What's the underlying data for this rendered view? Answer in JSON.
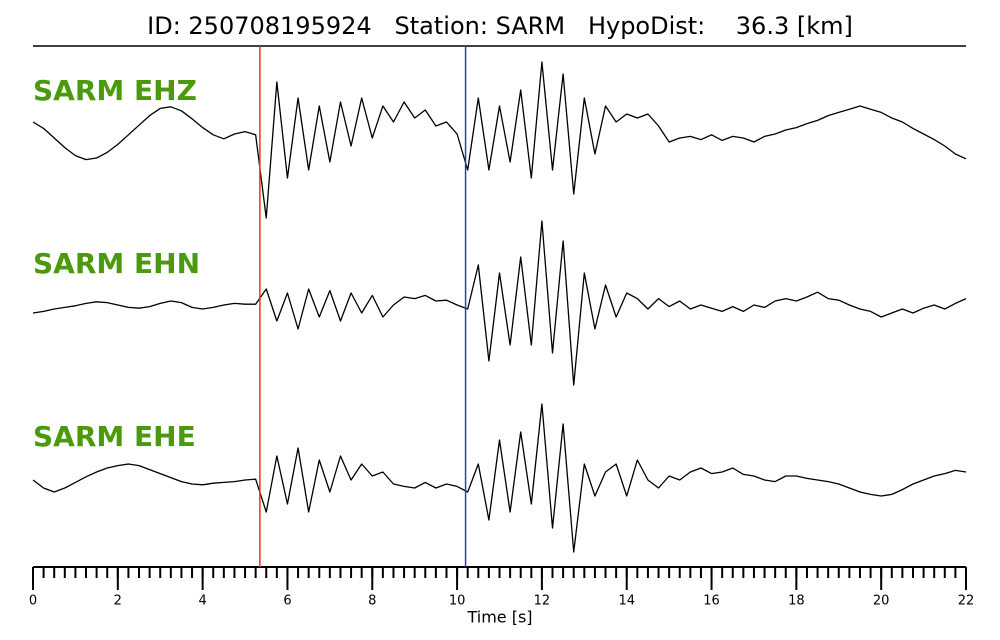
{
  "chart_data": {
    "type": "waveform",
    "title": "ID: 250708195924   Station: SARM   HypoDist:    36.3 [km]",
    "x_label": "Time [s]",
    "xlim": [
      0,
      22
    ],
    "xticks": [
      0,
      2,
      4,
      6,
      8,
      10,
      12,
      14,
      16,
      18,
      20,
      22
    ],
    "xminorticks": [
      0,
      0.25,
      0.5,
      0.75,
      1,
      1.25,
      1.5,
      1.75,
      2,
      2.25,
      2.5,
      2.75,
      3,
      3.25,
      3.5,
      3.75,
      4,
      4.25,
      4.5,
      4.75,
      5,
      5.25,
      5.5,
      5.75,
      6,
      6.25,
      6.5,
      6.75,
      7,
      7.25,
      7.5,
      7.75,
      8,
      8.25,
      8.5,
      8.75,
      9,
      9.25,
      9.5,
      9.75,
      10,
      10.25,
      10.5,
      10.75,
      11,
      11.25,
      11.5,
      11.75,
      12,
      12.25,
      12.5,
      12.75,
      13,
      13.25,
      13.5,
      13.75,
      14,
      14.25,
      14.5,
      14.75,
      15,
      15.25,
      15.5,
      15.75,
      16,
      16.25,
      16.5,
      16.75,
      17,
      17.25,
      17.5,
      17.75,
      18,
      18.25,
      18.5,
      18.75,
      19,
      19.25,
      19.5,
      19.75,
      20,
      20.25,
      20.5,
      20.75,
      21,
      21.25,
      21.5,
      21.75,
      22
    ],
    "ylim": [
      -12,
      12
    ],
    "markers": [
      {
        "x": 5.35,
        "color": "#e8322a"
      },
      {
        "x": 10.2,
        "color": "#3535d5"
      }
    ],
    "x": [
      0,
      0.25,
      0.5,
      0.75,
      1,
      1.25,
      1.5,
      1.75,
      2,
      2.25,
      2.5,
      2.75,
      3,
      3.25,
      3.5,
      3.75,
      4,
      4.25,
      4.5,
      4.75,
      5,
      5.25,
      5.5,
      5.75,
      6,
      6.25,
      6.5,
      6.75,
      7,
      7.25,
      7.5,
      7.75,
      8,
      8.25,
      8.5,
      8.75,
      9,
      9.25,
      9.5,
      9.75,
      10,
      10.25,
      10.5,
      10.75,
      11,
      11.25,
      11.5,
      11.75,
      12,
      12.25,
      12.5,
      12.75,
      13,
      13.25,
      13.5,
      13.75,
      14,
      14.25,
      14.5,
      14.75,
      15,
      15.25,
      15.5,
      15.75,
      16,
      16.25,
      16.5,
      16.75,
      17,
      17.25,
      17.5,
      17.75,
      18,
      18.25,
      18.5,
      18.75,
      19,
      19.25,
      19.5,
      19.75,
      20,
      20.25,
      20.5,
      20.75,
      21,
      21.25,
      21.5,
      21.75,
      22
    ],
    "series": [
      {
        "name": "SARM EHZ",
        "color": "#000000",
        "label_color": "#4a9a0b",
        "values": [
          1,
          0.2,
          -1,
          -2.2,
          -3.2,
          -3.7,
          -3.5,
          -2.8,
          -1.8,
          -0.6,
          0.6,
          1.8,
          2.7,
          2.9,
          2.4,
          1.4,
          0.3,
          -0.6,
          -1.1,
          -0.5,
          -0.2,
          -0.6,
          -11,
          6,
          -6,
          4,
          -5,
          3,
          -4,
          3.5,
          -2,
          4,
          -1,
          3,
          1,
          3.5,
          1.5,
          2.5,
          0.5,
          1,
          -0.5,
          -5,
          4,
          -5,
          3,
          -4,
          5,
          -6,
          8.5,
          -5,
          7,
          -8,
          4,
          -3,
          3,
          1,
          2,
          1.5,
          2,
          0.5,
          -1.5,
          -1,
          -0.8,
          -1.2,
          -0.6,
          -1.3,
          -0.8,
          -1,
          -1.5,
          -0.8,
          -0.5,
          0,
          0.3,
          0.8,
          1.2,
          1.8,
          2.2,
          2.6,
          3,
          2.6,
          2.2,
          1.5,
          1,
          0.2,
          -0.5,
          -1.2,
          -2,
          -3,
          -3.6
        ]
      },
      {
        "name": "SARM EHN",
        "color": "#000000",
        "label_color": "#4a9a0b",
        "values": [
          -1,
          -0.8,
          -0.5,
          -0.3,
          -0.1,
          0.2,
          0.4,
          0.3,
          0,
          -0.3,
          -0.4,
          -0.2,
          0.2,
          0.5,
          0.3,
          -0.3,
          -0.5,
          -0.3,
          0,
          0.2,
          0.1,
          0.1,
          2,
          -2,
          1.5,
          -3,
          2,
          -1.5,
          1.8,
          -2,
          1.5,
          -1,
          1.2,
          -1.5,
          0,
          1,
          0.8,
          1.2,
          0.5,
          0.6,
          0,
          -0.5,
          5,
          -7,
          4,
          -5,
          6,
          -5,
          10.5,
          -6,
          8,
          -10,
          4,
          -3,
          2.5,
          -1.5,
          1.5,
          0.8,
          -0.5,
          0.8,
          -0.2,
          0.5,
          -0.5,
          0,
          -0.4,
          -0.8,
          -0.2,
          -0.8,
          0,
          -0.3,
          0.5,
          0.8,
          0.5,
          1,
          1.6,
          0.8,
          0.6,
          0,
          -0.5,
          -0.8,
          -1.5,
          -1,
          -0.5,
          -1,
          -0.4,
          0,
          -0.5,
          0.2,
          0.8
        ]
      },
      {
        "name": "SARM EHE",
        "color": "#000000",
        "label_color": "#4a9a0b",
        "values": [
          0,
          -1,
          -1.5,
          -1,
          -0.3,
          0.4,
          1,
          1.5,
          1.8,
          2,
          1.8,
          1.3,
          0.8,
          0.3,
          -0.2,
          -0.5,
          -0.6,
          -0.4,
          -0.3,
          -0.2,
          0,
          0.1,
          -4,
          3,
          -3,
          4,
          -4,
          2.5,
          -1.5,
          3,
          0,
          2,
          0.5,
          1,
          -0.5,
          -0.8,
          -1,
          -0.3,
          -1,
          -0.5,
          -0.8,
          -1.5,
          2,
          -5,
          5,
          -4,
          6,
          -3,
          9.5,
          -6,
          7,
          -9,
          2,
          -2,
          1,
          2,
          -2,
          2.5,
          0,
          -1,
          0.5,
          0,
          1,
          1.5,
          0.8,
          1,
          1.5,
          0.7,
          0.5,
          0,
          -0.2,
          0.5,
          0.5,
          0.2,
          0,
          -0.2,
          -0.5,
          -1,
          -1.5,
          -1.8,
          -2,
          -1.8,
          -1.2,
          -0.5,
          0,
          0.5,
          0.8,
          1.2,
          1
        ]
      }
    ]
  }
}
